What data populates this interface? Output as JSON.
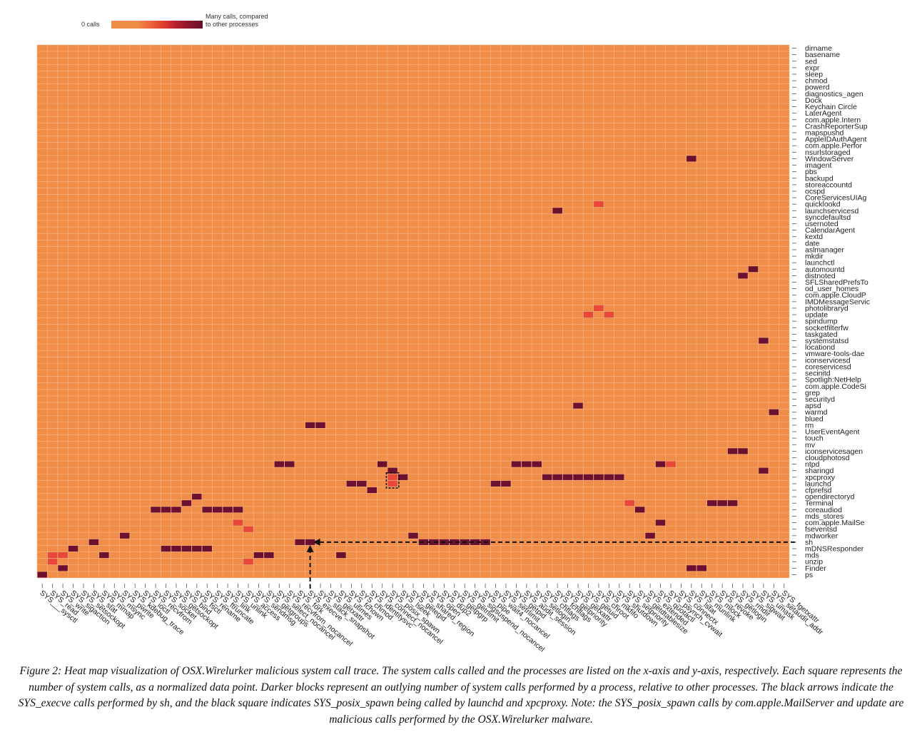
{
  "chart_data": {
    "type": "heatmap",
    "title": "",
    "legend": {
      "low_label": "0 calls",
      "high_label_line1": "Many calls, compared",
      "high_label_line2": "to other processes"
    },
    "colors": {
      "low": "#f08d48",
      "mid": "#e8473a",
      "high": "#6b1030",
      "grid": "#f6b58a"
    },
    "x_labels": [
      "SYS___sysctl",
      "SYS_read",
      "SYS_write",
      "SYS_sigaction",
      "SYS_setsockopt",
      "SYS_stat",
      "SYS_mmap",
      "SYS_msync",
      "SYS_pwrite",
      "SYS_kdebug_trace",
      "SYS_ioctl",
      "SYS_recvfrom",
      "SYS_socket",
      "SYS_getsockopt",
      "SYS_bind",
      "SYS_fsctl",
      "SYS_rename",
      "SYS_ftruncate",
      "SYS_link",
      "SYS_unlink",
      "SYS_access",
      "SYS_sendmsg",
      "SYS_getgroups",
      "SYS_select_nocancel",
      "SYS_recvfrom_nocancel",
      "SYS_fork",
      "SYS_execve",
      "SYS_stack_snapshot",
      "SYS_getxattr",
      "SYS_utimes",
      "SYS_fchown",
      "SYS_chmod",
      "SYS_identitysvc",
      "SYS_connect_nocancel",
      "SYS_posix_spawn",
      "SYS_lseek",
      "SYS_getegid",
      "SYS_shared_region",
      "SYS_open",
      "SYS_dup2",
      "SYS_getpgrp",
      "SYS_getrlimit",
      "SYS_sigsuspend_nocancel",
      "SYS_pipe",
      "SYS_wait4_nocancel",
      "SYS_setrlimit",
      "SYS_getpid",
      "SYS_audit_session",
      "SYS_setlogin",
      "SYS_chflags",
      "SYS_fchflags",
      "SYS_getpriority",
      "SYS_getxattr2",
      "SYS_getuid",
      "SYS_chroot",
      "SYS_mkfifo",
      "SYS_shutdown",
      "SYS_setpriority",
      "SYS_getdtablesize",
      "SYS_extended",
      "SYS_quotactl",
      "SYS_psynch_cvwait",
      "SYS_connectx",
      "SYS_lstat",
      "SYS_munlink",
      "SYS_mlock",
      "SYS_revoke",
      "SYS_getlogin",
      "SYS_rmdir",
      "SYS_sigwait",
      "SYS_umask",
      "SYS_setaudit_addr",
      "SYS_fgetxattr"
    ],
    "x_labels_visible": [
      "SYS___sysctl",
      "SYS_read",
      "SYS_write",
      "SYS_sigaction",
      "SYS_setsockopt",
      "SYS_stat",
      "SYS_mmap",
      "SYS_msync",
      "SYS_pwrite",
      "SYS_kdebug_trace",
      "SYS_ioctl",
      "SYS_recvfrom",
      "SYS_socket",
      "SYS_getsockopt",
      "SYS_bind",
      "SYS_fsctl",
      "SYS_rename",
      "SYS_ftruncate",
      "SYS_link",
      "SYS_unlink",
      "SYS_access",
      "SYS_sendmsg",
      "SYS_getgroups",
      "SYS_select_nocancel",
      "SYS_recvfrom_nocancel",
      "SYS_fork",
      "SYS_execve",
      "SYS_stack_snapshot",
      "SYS_getxattr",
      "SYS_utimes",
      "SYS_fchown",
      "SYS_chmod",
      "SYS_identitysvc",
      "SYS_connect_nocancel",
      "SYS_posix_spawn",
      "SYS_lseek",
      "SYS_getegid",
      "SYS_shared_region",
      "SYS_open",
      "SYS_dup2",
      "SYS_getpgrp",
      "SYS_getrlimit",
      "SYS_sigsuspend_nocancel",
      "SYS_pipe",
      "SYS_wait4_nocancel",
      "SYS_setrlimit",
      "SYS_getpid",
      "SYS_audit_session",
      "SYS_setlogin",
      "SYS_chflags",
      "SYS_fchflags",
      "SYS_getpriority",
      "SYS_getxattr",
      "SYS_getuid",
      "SYS_chroot",
      "SYS_mkfifo",
      "SYS_shutdown",
      "SYS_setpriority",
      "SYS_getdtablesize",
      "SYS_extended",
      "SYS_quotactl",
      "SYS_psynch_cvwait",
      "SYS_connectx",
      "SYS_lstat",
      "SYS_munlink",
      "SYS_mlock",
      "SYS_revoke",
      "SYS_getlogin",
      "SYS_rmdir",
      "SYS_sigwait",
      "SYS_umask",
      "SYS_setaudit_addr",
      "SYS_fgetxattr"
    ],
    "y_labels": [
      "dirname",
      "basename",
      "sed",
      "expr",
      "sleep",
      "chmod",
      "powerd",
      "diagnostics_agen",
      "Dock",
      "Keychain Circle",
      "LaterAgent",
      "com.apple.Intern",
      "CrashReporterSup",
      "mapspushd",
      "AppleIDAuthAgent",
      "com.apple.Perfor",
      "nsurlstoraged",
      "WindowServer",
      "imagent",
      "pbs",
      "backupd",
      "storeaccountd",
      "ocspd",
      "CoreServicesUIAg",
      "quicklookd",
      "launchservicesd",
      "syncdefaultsd",
      "usernoted",
      "CalendarAgent",
      "kextd",
      "date",
      "aslmanager",
      "mkdir",
      "launchctl",
      "automountd",
      "distnoted",
      "SFLSharedPrefsTo",
      "od_user_homes",
      "com.apple.CloudP",
      "IMDMessageServic",
      "photolibraryd",
      "update",
      "spindump",
      "socketfilterfw",
      "taskgated",
      "systemstatsd",
      "locationd",
      "vmware-tools-dae",
      "iconservicesd",
      "coreservicesd",
      "secinitd",
      "Spotligh:NetHelp",
      "com.apple.CodeSi",
      "grep",
      "securityd",
      "apsd",
      "warmd",
      "blued",
      "rm",
      "UserEventAgent",
      "touch",
      "mv",
      "iconservicesagen",
      "cloudphotosd",
      "ntpd",
      "sharingd",
      "xpcproxy",
      "launchd",
      "cfprefsd",
      "opendirectoryd",
      "Terminal",
      "coreaudiod",
      "mds_stores",
      "com.apple.MailSe",
      "fseventsd",
      "mdworker",
      "sh",
      "mDNSResponder",
      "mds",
      "unzip",
      "Finder",
      "ps"
    ],
    "cells": [
      {
        "process": "ps",
        "syscall": "SYS___sysctl",
        "level": "high"
      },
      {
        "process": "Finder",
        "syscall": "SYS_write",
        "level": "high"
      },
      {
        "process": "mds",
        "syscall": "SYS_read",
        "level": "mid"
      },
      {
        "process": "mds",
        "syscall": "SYS_write",
        "level": "mid"
      },
      {
        "process": "unzip",
        "syscall": "SYS_read",
        "level": "mid"
      },
      {
        "process": "mDNSResponder",
        "syscall": "SYS_sigaction",
        "level": "high"
      },
      {
        "process": "sh",
        "syscall": "SYS_stat",
        "level": "high"
      },
      {
        "process": "mds",
        "syscall": "SYS_mmap",
        "level": "high"
      },
      {
        "process": "mdworker",
        "syscall": "SYS_pwrite",
        "level": "high"
      },
      {
        "process": "mDNSResponder",
        "syscall": "SYS_socket",
        "level": "high"
      },
      {
        "process": "mDNSResponder",
        "syscall": "SYS_getsockopt",
        "level": "high"
      },
      {
        "process": "mDNSResponder",
        "syscall": "SYS_bind",
        "level": "high"
      },
      {
        "process": "mDNSResponder",
        "syscall": "SYS_fsctl",
        "level": "high"
      },
      {
        "process": "mDNSResponder",
        "syscall": "SYS_rename",
        "level": "high"
      },
      {
        "process": "coreaudiod",
        "syscall": "SYS_recvfrom",
        "level": "high"
      },
      {
        "process": "coreaudiod",
        "syscall": "SYS_socket",
        "level": "high"
      },
      {
        "process": "coreaudiod",
        "syscall": "SYS_getsockopt",
        "level": "high"
      },
      {
        "process": "Terminal",
        "syscall": "SYS_bind",
        "level": "high"
      },
      {
        "process": "opendirectoryd",
        "syscall": "SYS_fsctl",
        "level": "high"
      },
      {
        "process": "coreaudiod",
        "syscall": "SYS_rename",
        "level": "high"
      },
      {
        "process": "coreaudiod",
        "syscall": "SYS_ftruncate",
        "level": "high"
      },
      {
        "process": "coreaudiod",
        "syscall": "SYS_link",
        "level": "high"
      },
      {
        "process": "coreaudiod",
        "syscall": "SYS_unlink",
        "level": "high"
      },
      {
        "process": "com.apple.MailSe",
        "syscall": "SYS_unlink",
        "level": "mid"
      },
      {
        "process": "fseventsd",
        "syscall": "SYS_access",
        "level": "mid"
      },
      {
        "process": "mds",
        "syscall": "SYS_sendmsg",
        "level": "high"
      },
      {
        "process": "mds",
        "syscall": "SYS_getgroups",
        "level": "high"
      },
      {
        "process": "unzip",
        "syscall": "SYS_access",
        "level": "mid"
      },
      {
        "process": "ntpd",
        "syscall": "SYS_select_nocancel",
        "level": "high"
      },
      {
        "process": "ntpd",
        "syscall": "SYS_recvfrom_nocancel",
        "level": "high"
      },
      {
        "process": "sh",
        "syscall": "SYS_fork",
        "level": "high"
      },
      {
        "process": "sh",
        "syscall": "SYS_execve",
        "level": "high"
      },
      {
        "process": "rm",
        "syscall": "SYS_execve",
        "level": "high"
      },
      {
        "process": "rm",
        "syscall": "SYS_stack_snapshot",
        "level": "high"
      },
      {
        "process": "mds",
        "syscall": "SYS_utimes",
        "level": "high"
      },
      {
        "process": "launchd",
        "syscall": "SYS_fchown",
        "level": "high"
      },
      {
        "process": "launchd",
        "syscall": "SYS_chmod",
        "level": "high"
      },
      {
        "process": "cfprefsd",
        "syscall": "SYS_identitysvc",
        "level": "high"
      },
      {
        "process": "ntpd",
        "syscall": "SYS_connect_nocancel",
        "level": "high"
      },
      {
        "process": "sharingd",
        "syscall": "SYS_posix_spawn",
        "level": "high"
      },
      {
        "process": "xpcproxy",
        "syscall": "SYS_posix_spawn",
        "level": "mid"
      },
      {
        "process": "launchd",
        "syscall": "SYS_posix_spawn",
        "level": "mid"
      },
      {
        "process": "xpcproxy",
        "syscall": "SYS_lseek",
        "level": "high"
      },
      {
        "process": "sh",
        "syscall": "SYS_shared_region",
        "level": "high"
      },
      {
        "process": "sh",
        "syscall": "SYS_open",
        "level": "high"
      },
      {
        "process": "sh",
        "syscall": "SYS_dup2",
        "level": "high"
      },
      {
        "process": "sh",
        "syscall": "SYS_getpgrp",
        "level": "high"
      },
      {
        "process": "sh",
        "syscall": "SYS_getrlimit",
        "level": "high"
      },
      {
        "process": "sh",
        "syscall": "SYS_sigsuspend_nocancel",
        "level": "high"
      },
      {
        "process": "sh",
        "syscall": "SYS_pipe",
        "level": "high"
      },
      {
        "process": "mdworker",
        "syscall": "SYS_getegid",
        "level": "high"
      },
      {
        "process": "launchd",
        "syscall": "SYS_wait4_nocancel",
        "level": "high"
      },
      {
        "process": "launchd",
        "syscall": "SYS_setrlimit",
        "level": "high"
      },
      {
        "process": "ntpd",
        "syscall": "SYS_getpid",
        "level": "high"
      },
      {
        "process": "ntpd",
        "syscall": "SYS_audit_session",
        "level": "high"
      },
      {
        "process": "ntpd",
        "syscall": "SYS_setlogin",
        "level": "high"
      },
      {
        "process": "xpcproxy",
        "syscall": "SYS_chflags",
        "level": "high"
      },
      {
        "process": "xpcproxy",
        "syscall": "SYS_fchflags",
        "level": "high"
      },
      {
        "process": "xpcproxy",
        "syscall": "SYS_getpriority",
        "level": "high"
      },
      {
        "process": "xpcproxy",
        "syscall": "SYS_getxattr2",
        "level": "high"
      },
      {
        "process": "xpcproxy",
        "syscall": "SYS_getuid",
        "level": "high"
      },
      {
        "process": "xpcproxy",
        "syscall": "SYS_chroot",
        "level": "high"
      },
      {
        "process": "xpcproxy",
        "syscall": "SYS_mkfifo",
        "level": "high"
      },
      {
        "process": "xpcproxy",
        "syscall": "SYS_shutdown",
        "level": "high"
      },
      {
        "process": "Terminal",
        "syscall": "SYS_setpriority",
        "level": "mid"
      },
      {
        "process": "coreaudiod",
        "syscall": "SYS_getdtablesize",
        "level": "high"
      },
      {
        "process": "mdworker",
        "syscall": "SYS_extended",
        "level": "high"
      },
      {
        "process": "ntpd",
        "syscall": "SYS_quotactl",
        "level": "high"
      },
      {
        "process": "ntpd",
        "syscall": "SYS_psynch_cvwait",
        "level": "mid"
      },
      {
        "process": "Finder",
        "syscall": "SYS_lstat",
        "level": "high"
      },
      {
        "process": "Finder",
        "syscall": "SYS_munlink",
        "level": "high"
      },
      {
        "process": "WindowServer",
        "syscall": "SYS_lstat",
        "level": "high"
      },
      {
        "process": "launchservicesd",
        "syscall": "SYS_fchflags",
        "level": "high"
      },
      {
        "process": "quicklookd",
        "syscall": "SYS_chroot",
        "level": "mid"
      },
      {
        "process": "systemstatsd",
        "syscall": "SYS_umask",
        "level": "high"
      },
      {
        "process": "automountd",
        "syscall": "SYS_sigwait",
        "level": "high"
      },
      {
        "process": "distnoted",
        "syscall": "SYS_rmdir",
        "level": "high"
      },
      {
        "process": "Terminal",
        "syscall": "SYS_mlock",
        "level": "high"
      },
      {
        "process": "Terminal",
        "syscall": "SYS_revoke",
        "level": "high"
      },
      {
        "process": "Terminal",
        "syscall": "SYS_getlogin",
        "level": "high"
      },
      {
        "process": "com.apple.MailSe",
        "syscall": "SYS_quotactl",
        "level": "high"
      },
      {
        "process": "iconservicesagen",
        "syscall": "SYS_getlogin",
        "level": "high"
      },
      {
        "process": "iconservicesagen",
        "syscall": "SYS_rmdir",
        "level": "high"
      },
      {
        "process": "warmd",
        "syscall": "SYS_setaudit_addr",
        "level": "high"
      },
      {
        "process": "sharingd",
        "syscall": "SYS_umask",
        "level": "high"
      },
      {
        "process": "apsd",
        "syscall": "SYS_getxattr2",
        "level": "high"
      },
      {
        "process": "update",
        "syscall": "SYS_getuid",
        "level": "mid"
      },
      {
        "process": "photolibraryd",
        "syscall": "SYS_chroot",
        "level": "mid"
      },
      {
        "process": "update",
        "syscall": "SYS_mkfifo",
        "level": "mid"
      }
    ],
    "annotations": {
      "arrow_row": "sh",
      "arrow_col": "SYS_execve",
      "box_rows": [
        "xpcproxy",
        "launchd"
      ],
      "box_col": "SYS_posix_spawn"
    }
  },
  "caption": "Figure 2: Heat map visualization of OSX.Wirelurker malicious system call trace. The system calls called and the processes are listed on the x-axis and y-axis, respectively. Each square represents the number of system calls, as a normalized data point. Darker blocks represent an outlying number of system calls performed by a process, relative to other processes. The black arrows indicate the SYS_execve calls performed by sh, and the black square indicates SYS_posix_spawn being called by launchd and xpcproxy. Note: the SYS_posix_spawn calls by com.apple.MailServer and update are malicious calls performed by the OSX.Wirelurker malware."
}
